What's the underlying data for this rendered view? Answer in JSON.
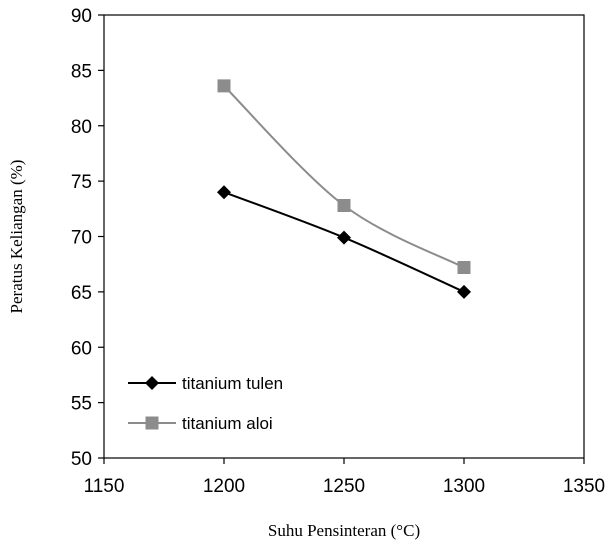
{
  "chart_data": {
    "type": "line",
    "title": "",
    "xlabel": "Suhu Pensinteran (°C)",
    "ylabel": "Peratus Keliangan (%)",
    "xlim": [
      1150,
      1350
    ],
    "ylim": [
      50,
      90
    ],
    "xticks": [
      1150,
      1200,
      1250,
      1300,
      1350
    ],
    "yticks": [
      50,
      55,
      60,
      65,
      70,
      75,
      80,
      85,
      90
    ],
    "grid": false,
    "legend_position": "bottom-left",
    "x": [
      1200,
      1250,
      1300
    ],
    "series": [
      {
        "name": "titanium tulen",
        "values": [
          74.0,
          69.9,
          65.0
        ],
        "color": "#000000",
        "marker": "diamond"
      },
      {
        "name": "titanium aloi",
        "values": [
          83.6,
          72.8,
          67.2
        ],
        "color": "#8c8c8c",
        "marker": "square"
      }
    ]
  }
}
